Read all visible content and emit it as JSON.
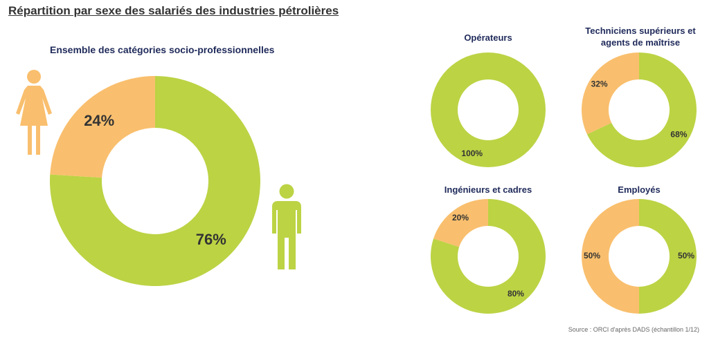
{
  "title": "Répartition par sexe des salariés des industries pétrolières",
  "source": "Source : ORCI d'après DADS (échantillon 1/12)",
  "colors": {
    "women": "#f9bf6e",
    "men": "#bcd344",
    "title_text": "#1f2a5a",
    "label_text": "#333333"
  },
  "icons": {
    "women": "woman-icon",
    "men": "man-icon"
  },
  "chart_data": [
    {
      "type": "pie",
      "title": "Ensemble des catégories socio-professionnelles",
      "slices": [
        {
          "name": "women",
          "value": 24,
          "label": "24%"
        },
        {
          "name": "men",
          "value": 76,
          "label": "76%"
        }
      ]
    },
    {
      "type": "pie",
      "title": "Opérateurs",
      "slices": [
        {
          "name": "women",
          "value": 0,
          "label": ""
        },
        {
          "name": "men",
          "value": 100,
          "label": "100%"
        }
      ]
    },
    {
      "type": "pie",
      "title": "Techniciens supérieurs et agents de maîtrise",
      "slices": [
        {
          "name": "women",
          "value": 32,
          "label": "32%"
        },
        {
          "name": "men",
          "value": 68,
          "label": "68%"
        }
      ]
    },
    {
      "type": "pie",
      "title": "Ingénieurs et cadres",
      "slices": [
        {
          "name": "women",
          "value": 20,
          "label": "20%"
        },
        {
          "name": "men",
          "value": 80,
          "label": "80%"
        }
      ]
    },
    {
      "type": "pie",
      "title": "Employés",
      "slices": [
        {
          "name": "women",
          "value": 50,
          "label": "50%"
        },
        {
          "name": "men",
          "value": 50,
          "label": "50%"
        }
      ]
    }
  ]
}
